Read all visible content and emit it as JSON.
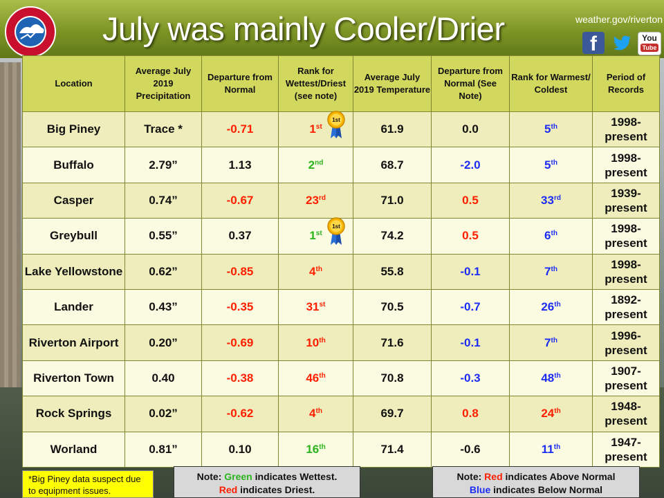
{
  "header": {
    "title": "July was mainly Cooler/Drier",
    "url": "weather.gov/riverton",
    "social": [
      {
        "name": "facebook",
        "label": "f"
      },
      {
        "name": "twitter",
        "label": ""
      },
      {
        "name": "youtube",
        "label_top": "You",
        "label_bottom": "Tube"
      }
    ],
    "logo_text": "NATIONAL WEATHER SERVICE"
  },
  "table": {
    "columns": [
      "Location",
      "Average July 2019 Precipitation",
      "Departure from Normal",
      "Rank for Wettest/Driest (see note)",
      "Average July 2019 Temperature",
      "Departure from Normal (See Note)",
      "Rank for Warmest/ Coldest",
      "Period of Records"
    ],
    "rows": [
      {
        "location": "Big Piney",
        "precip": "Trace *",
        "precip_dep": "-0.71",
        "precip_rank": "1",
        "precip_rank_suffix": "st",
        "temp": "61.9",
        "temp_dep": "0.0",
        "temp_rank": "5",
        "temp_rank_suffix": "th",
        "period_start": "1998-",
        "period_end": "present",
        "ribbon": "1st"
      },
      {
        "location": "Buffalo",
        "precip": "2.79”",
        "precip_dep": "1.13",
        "precip_rank": "2",
        "precip_rank_suffix": "nd",
        "temp": "68.7",
        "temp_dep": "-2.0",
        "temp_rank": "5",
        "temp_rank_suffix": "th",
        "period_start": "1998-",
        "period_end": "present"
      },
      {
        "location": "Casper",
        "precip": "0.74”",
        "precip_dep": "-0.67",
        "precip_rank": "23",
        "precip_rank_suffix": "rd",
        "temp": "71.0",
        "temp_dep": "0.5",
        "temp_rank": "33",
        "temp_rank_suffix": "rd",
        "period_start": "1939-",
        "period_end": "present"
      },
      {
        "location": "Greybull",
        "precip": "0.55”",
        "precip_dep": "0.37",
        "precip_rank": "1",
        "precip_rank_suffix": "st",
        "temp": "74.2",
        "temp_dep": "0.5",
        "temp_rank": "6",
        "temp_rank_suffix": "th",
        "period_start": "1998-",
        "period_end": "present",
        "ribbon": "1st"
      },
      {
        "location": "Lake Yellowstone",
        "precip": "0.62”",
        "precip_dep": "-0.85",
        "precip_rank": "4",
        "precip_rank_suffix": "th",
        "temp": "55.8",
        "temp_dep": "-0.1",
        "temp_rank": "7",
        "temp_rank_suffix": "th",
        "period_start": "1998-",
        "period_end": "present"
      },
      {
        "location": "Lander",
        "precip": "0.43”",
        "precip_dep": "-0.35",
        "precip_rank": "31",
        "precip_rank_suffix": "st",
        "temp": "70.5",
        "temp_dep": "-0.7",
        "temp_rank": "26",
        "temp_rank_suffix": "th",
        "period_start": "1892-",
        "period_end": "present"
      },
      {
        "location": "Riverton Airport",
        "precip": "0.20”",
        "precip_dep": "-0.69",
        "precip_rank": "10",
        "precip_rank_suffix": "th",
        "temp": "71.6",
        "temp_dep": "-0.1",
        "temp_rank": "7",
        "temp_rank_suffix": "th",
        "period_start": "1996-",
        "period_end": "present"
      },
      {
        "location": "Riverton Town",
        "precip": "0.40",
        "precip_dep": "-0.38",
        "precip_rank": "46",
        "precip_rank_suffix": "th",
        "temp": "70.8",
        "temp_dep": "-0.3",
        "temp_rank": "48",
        "temp_rank_suffix": "th",
        "period_start": "1907-",
        "period_end": "present"
      },
      {
        "location": "Rock Springs",
        "precip": "0.02”",
        "precip_dep": "-0.62",
        "precip_rank": "4",
        "precip_rank_suffix": "th",
        "temp": "69.7",
        "temp_dep": "0.8",
        "temp_rank": "24",
        "temp_rank_suffix": "th",
        "period_start": "1948-",
        "period_end": "present"
      },
      {
        "location": "Worland",
        "precip": "0.81”",
        "precip_dep": "0.10",
        "precip_rank": "16",
        "precip_rank_suffix": "th",
        "temp": "71.4",
        "temp_dep": "-0.6",
        "temp_rank": "11",
        "temp_rank_suffix": "th",
        "period_start": "1947-",
        "period_end": "present"
      }
    ]
  },
  "notes": {
    "footnote": "*Big Piney data suspect due to equipment issues.",
    "precip_note_prefix": "Note: ",
    "precip_note_green": "Green",
    "precip_note_mid": " indicates Wettest.",
    "precip_note_red": "Red",
    "precip_note_end": " indicates Driest.",
    "temp_note_prefix": "Note: ",
    "temp_note_red": "Red",
    "temp_note_mid": " indicates Above Normal",
    "temp_note_blue": "Blue",
    "temp_note_end": " indicates Below Normal"
  },
  "colors": {
    "banner": "#7c9424",
    "header_cell": "#d2d75e",
    "row_a": "#eeedbb",
    "row_b": "#fbfbe2",
    "red": "#ff1e00",
    "green": "#2bb41d",
    "blue": "#1d2cf5",
    "footnote_bg": "#ffff00"
  }
}
